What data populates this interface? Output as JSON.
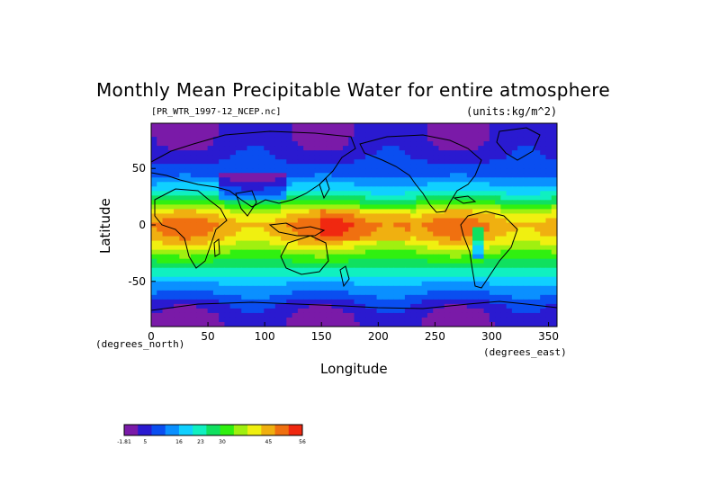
{
  "chart_data": {
    "type": "heatmap",
    "title": "Monthly Mean Precipitable Water for entire atmosphere",
    "subtitle": "[PR_WTR_1997-12_NCEP.nc]",
    "units": "(units:kg/m^2)",
    "xlabel": "Longitude",
    "ylabel": "Latitude",
    "x_unit_note": "(degrees_east)",
    "y_unit_note": "(degrees_north)",
    "xlim": [
      0,
      357.5
    ],
    "ylim": [
      -90,
      90
    ],
    "x_ticks": [
      0,
      50,
      100,
      150,
      200,
      250,
      300,
      350
    ],
    "y_ticks": [
      50,
      0,
      -50
    ],
    "grid": false,
    "colorbar": {
      "ticks": [
        "-1.81",
        "5",
        "16",
        "23",
        "30",
        "45",
        "56"
      ],
      "tick_values": [
        -1.81,
        5,
        16,
        23,
        30,
        45,
        56
      ],
      "colors": [
        "#7a1aa8",
        "#2a1ad0",
        "#0a4ef0",
        "#0a90ff",
        "#10d0ff",
        "#10f0c0",
        "#10e060",
        "#30f010",
        "#a0f010",
        "#f0f010",
        "#f0b010",
        "#f07010",
        "#f02810"
      ],
      "placement": "bottom-left"
    },
    "profile": {
      "description_values_kg_m2_by_latitude": [
        [
          -90,
          2
        ],
        [
          -80,
          3
        ],
        [
          -70,
          6
        ],
        [
          -60,
          12
        ],
        [
          -50,
          17
        ],
        [
          -40,
          24
        ],
        [
          -30,
          30
        ],
        [
          -20,
          38
        ],
        [
          -10,
          45
        ],
        [
          0,
          47
        ],
        [
          10,
          42
        ],
        [
          20,
          30
        ],
        [
          30,
          20
        ],
        [
          40,
          13
        ],
        [
          50,
          9
        ],
        [
          60,
          6
        ],
        [
          70,
          4
        ],
        [
          80,
          3
        ],
        [
          90,
          3
        ]
      ]
    }
  },
  "colors": {
    "background": "#ffffff",
    "coastline": "#000000"
  }
}
